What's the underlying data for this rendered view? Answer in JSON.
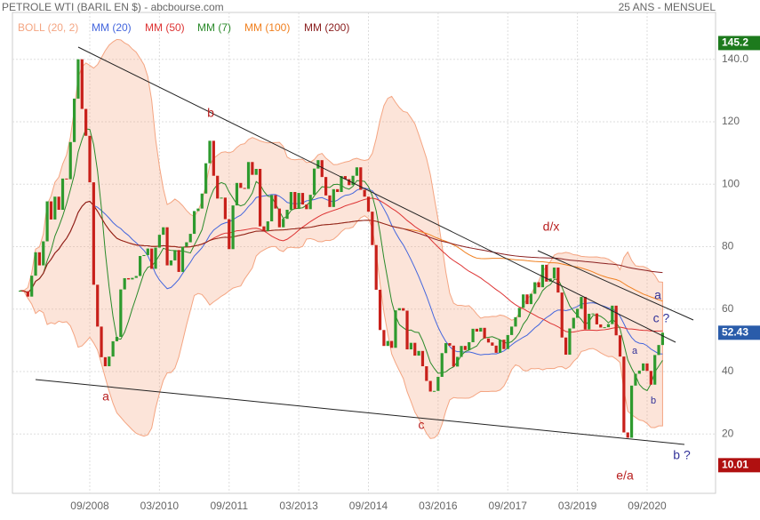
{
  "chart_data": {
    "type": "candlestick",
    "title": "PETROLE WTI (BARIL EN $) - abcbourse.com",
    "subtitle": "25 ANS - MENSUEL",
    "x": [
      "03/2007",
      "04/2007",
      "05/2007",
      "06/2007",
      "07/2007",
      "08/2007",
      "09/2007",
      "10/2007",
      "11/2007",
      "12/2007",
      "01/2008",
      "02/2008",
      "03/2008",
      "04/2008",
      "05/2008",
      "06/2008",
      "07/2008",
      "08/2008",
      "09/2008",
      "10/2008",
      "11/2008",
      "12/2008",
      "01/2009",
      "02/2009",
      "03/2009",
      "04/2009",
      "05/2009",
      "06/2009",
      "07/2009",
      "08/2009",
      "09/2009",
      "10/2009",
      "11/2009",
      "12/2009",
      "01/2010",
      "02/2010",
      "03/2010",
      "04/2010",
      "05/2010",
      "06/2010",
      "07/2010",
      "08/2010",
      "09/2010",
      "10/2010",
      "11/2010",
      "12/2010",
      "01/2011",
      "02/2011",
      "03/2011",
      "04/2011",
      "05/2011",
      "06/2011",
      "07/2011",
      "08/2011",
      "09/2011",
      "10/2011",
      "11/2011",
      "12/2011",
      "01/2012",
      "02/2012",
      "03/2012",
      "04/2012",
      "05/2012",
      "06/2012",
      "07/2012",
      "08/2012",
      "09/2012",
      "10/2012",
      "11/2012",
      "12/2012",
      "01/2013",
      "02/2013",
      "03/2013",
      "04/2013",
      "05/2013",
      "06/2013",
      "07/2013",
      "08/2013",
      "09/2013",
      "10/2013",
      "11/2013",
      "12/2013",
      "01/2014",
      "02/2014",
      "03/2014",
      "04/2014",
      "05/2014",
      "06/2014",
      "07/2014",
      "08/2014",
      "09/2014",
      "10/2014",
      "11/2014",
      "12/2014",
      "01/2015",
      "02/2015",
      "03/2015",
      "04/2015",
      "05/2015",
      "06/2015",
      "07/2015",
      "08/2015",
      "09/2015",
      "10/2015",
      "11/2015",
      "12/2015",
      "01/2016",
      "02/2016",
      "03/2016",
      "04/2016",
      "05/2016",
      "06/2016",
      "07/2016",
      "08/2016",
      "09/2016",
      "10/2016",
      "11/2016",
      "12/2016",
      "01/2017",
      "02/2017",
      "03/2017",
      "04/2017",
      "05/2017",
      "06/2017",
      "07/2017",
      "08/2017",
      "09/2017",
      "10/2017",
      "11/2017",
      "12/2017",
      "01/2018",
      "02/2018",
      "03/2018",
      "04/2018",
      "05/2018",
      "06/2018",
      "07/2018",
      "08/2018",
      "09/2018",
      "10/2018",
      "11/2018",
      "12/2018",
      "01/2019",
      "02/2019",
      "03/2019",
      "04/2019",
      "05/2019",
      "06/2019",
      "07/2019",
      "08/2019",
      "09/2019",
      "10/2019",
      "11/2019",
      "12/2019",
      "01/2020",
      "02/2020",
      "03/2020",
      "04/2020",
      "05/2020",
      "06/2020",
      "07/2020",
      "08/2020",
      "09/2020",
      "10/2020",
      "11/2020",
      "12/2020",
      "01/2021"
    ],
    "values": [
      65.9,
      65.7,
      64.0,
      70.7,
      78.2,
      74.0,
      81.7,
      94.5,
      88.7,
      96.0,
      91.8,
      101.8,
      101.6,
      113.5,
      127.4,
      140.0,
      124.1,
      115.5,
      100.6,
      67.8,
      54.4,
      44.6,
      41.7,
      44.8,
      49.7,
      51.1,
      66.3,
      69.9,
      69.5,
      70.0,
      70.6,
      77.0,
      77.3,
      79.4,
      72.9,
      79.7,
      83.8,
      86.2,
      74.0,
      75.6,
      78.9,
      71.9,
      80.0,
      81.4,
      84.1,
      91.4,
      92.2,
      97.0,
      106.7,
      113.9,
      102.7,
      95.4,
      95.7,
      88.8,
      79.2,
      93.2,
      100.4,
      98.8,
      98.5,
      107.1,
      103.0,
      104.9,
      86.5,
      85.0,
      88.1,
      96.5,
      92.2,
      86.2,
      88.9,
      91.8,
      97.5,
      92.1,
      97.2,
      93.5,
      92.0,
      96.6,
      105.0,
      107.7,
      102.3,
      96.4,
      92.7,
      98.4,
      97.5,
      102.6,
      101.6,
      99.7,
      102.7,
      105.4,
      98.2,
      96.0,
      91.2,
      80.5,
      66.2,
      53.3,
      48.2,
      49.8,
      47.6,
      59.6,
      60.3,
      59.5,
      47.1,
      49.2,
      45.1,
      46.6,
      41.7,
      37.0,
      33.6,
      33.8,
      38.3,
      45.9,
      49.1,
      48.3,
      41.6,
      44.7,
      48.2,
      46.9,
      49.4,
      53.7,
      52.8,
      54.0,
      50.6,
      49.3,
      48.3,
      46.0,
      50.2,
      47.2,
      51.7,
      54.4,
      57.4,
      60.4,
      64.7,
      61.6,
      64.9,
      68.6,
      67.0,
      74.2,
      68.8,
      69.8,
      73.3,
      65.3,
      50.9,
      45.4,
      53.8,
      57.2,
      60.1,
      63.9,
      53.5,
      58.5,
      58.6,
      55.1,
      54.1,
      54.2,
      55.2,
      61.1,
      51.6,
      44.8,
      20.5,
      18.8,
      35.5,
      39.3,
      40.3,
      42.6,
      40.2,
      35.8,
      45.3,
      48.5,
      52.43
    ],
    "up_color": "#2e9a2e",
    "down_color": "#c8201a",
    "xticks": [
      "09/2008",
      "03/2010",
      "09/2011",
      "03/2013",
      "09/2014",
      "03/2016",
      "09/2017",
      "03/2019",
      "09/2020"
    ],
    "ylim": [
      1,
      155
    ],
    "yticks": [
      20,
      40,
      60,
      80,
      100,
      120,
      {
        "value": 140,
        "label": "140.0"
      }
    ],
    "grid": true,
    "indicators": [
      {
        "name": "BOLL (20, 2)",
        "color": "#f4a582",
        "period": 20,
        "kind": "bollinger"
      },
      {
        "name": "MM (20)",
        "color": "#4466dd",
        "period": 20,
        "kind": "ma"
      },
      {
        "name": "MM (50)",
        "color": "#dd3333",
        "period": 50,
        "kind": "ma"
      },
      {
        "name": "MM (7)",
        "color": "#2a8a2a",
        "period": 7,
        "kind": "ma"
      },
      {
        "name": "MM (100)",
        "color": "#f08020",
        "period": 100,
        "kind": "ma"
      },
      {
        "name": "MM (200)",
        "color": "#8b2020",
        "period": 200,
        "kind": "ma"
      }
    ],
    "price_labels": [
      {
        "value": 145.2,
        "label": "145.2",
        "color": "#1d7a1d"
      },
      {
        "value": 52.43,
        "color": "#2a5caa"
      },
      {
        "value": 10.01,
        "color": "#b01010"
      }
    ],
    "annotations": [
      {
        "text": "b",
        "color": "#b82020"
      },
      {
        "text": "a",
        "color": "#b82020"
      },
      {
        "text": "d/x",
        "color": "#b82020"
      },
      {
        "text": "c",
        "color": "#b82020"
      },
      {
        "text": "e/a",
        "color": "#b82020"
      },
      {
        "text": "a",
        "color": "#333399"
      },
      {
        "text": "c ?",
        "color": "#333399"
      },
      {
        "text": "a",
        "color": "#333399"
      },
      {
        "text": "b",
        "color": "#333399"
      },
      {
        "text": "b ?",
        "color": "#333399"
      }
    ]
  }
}
